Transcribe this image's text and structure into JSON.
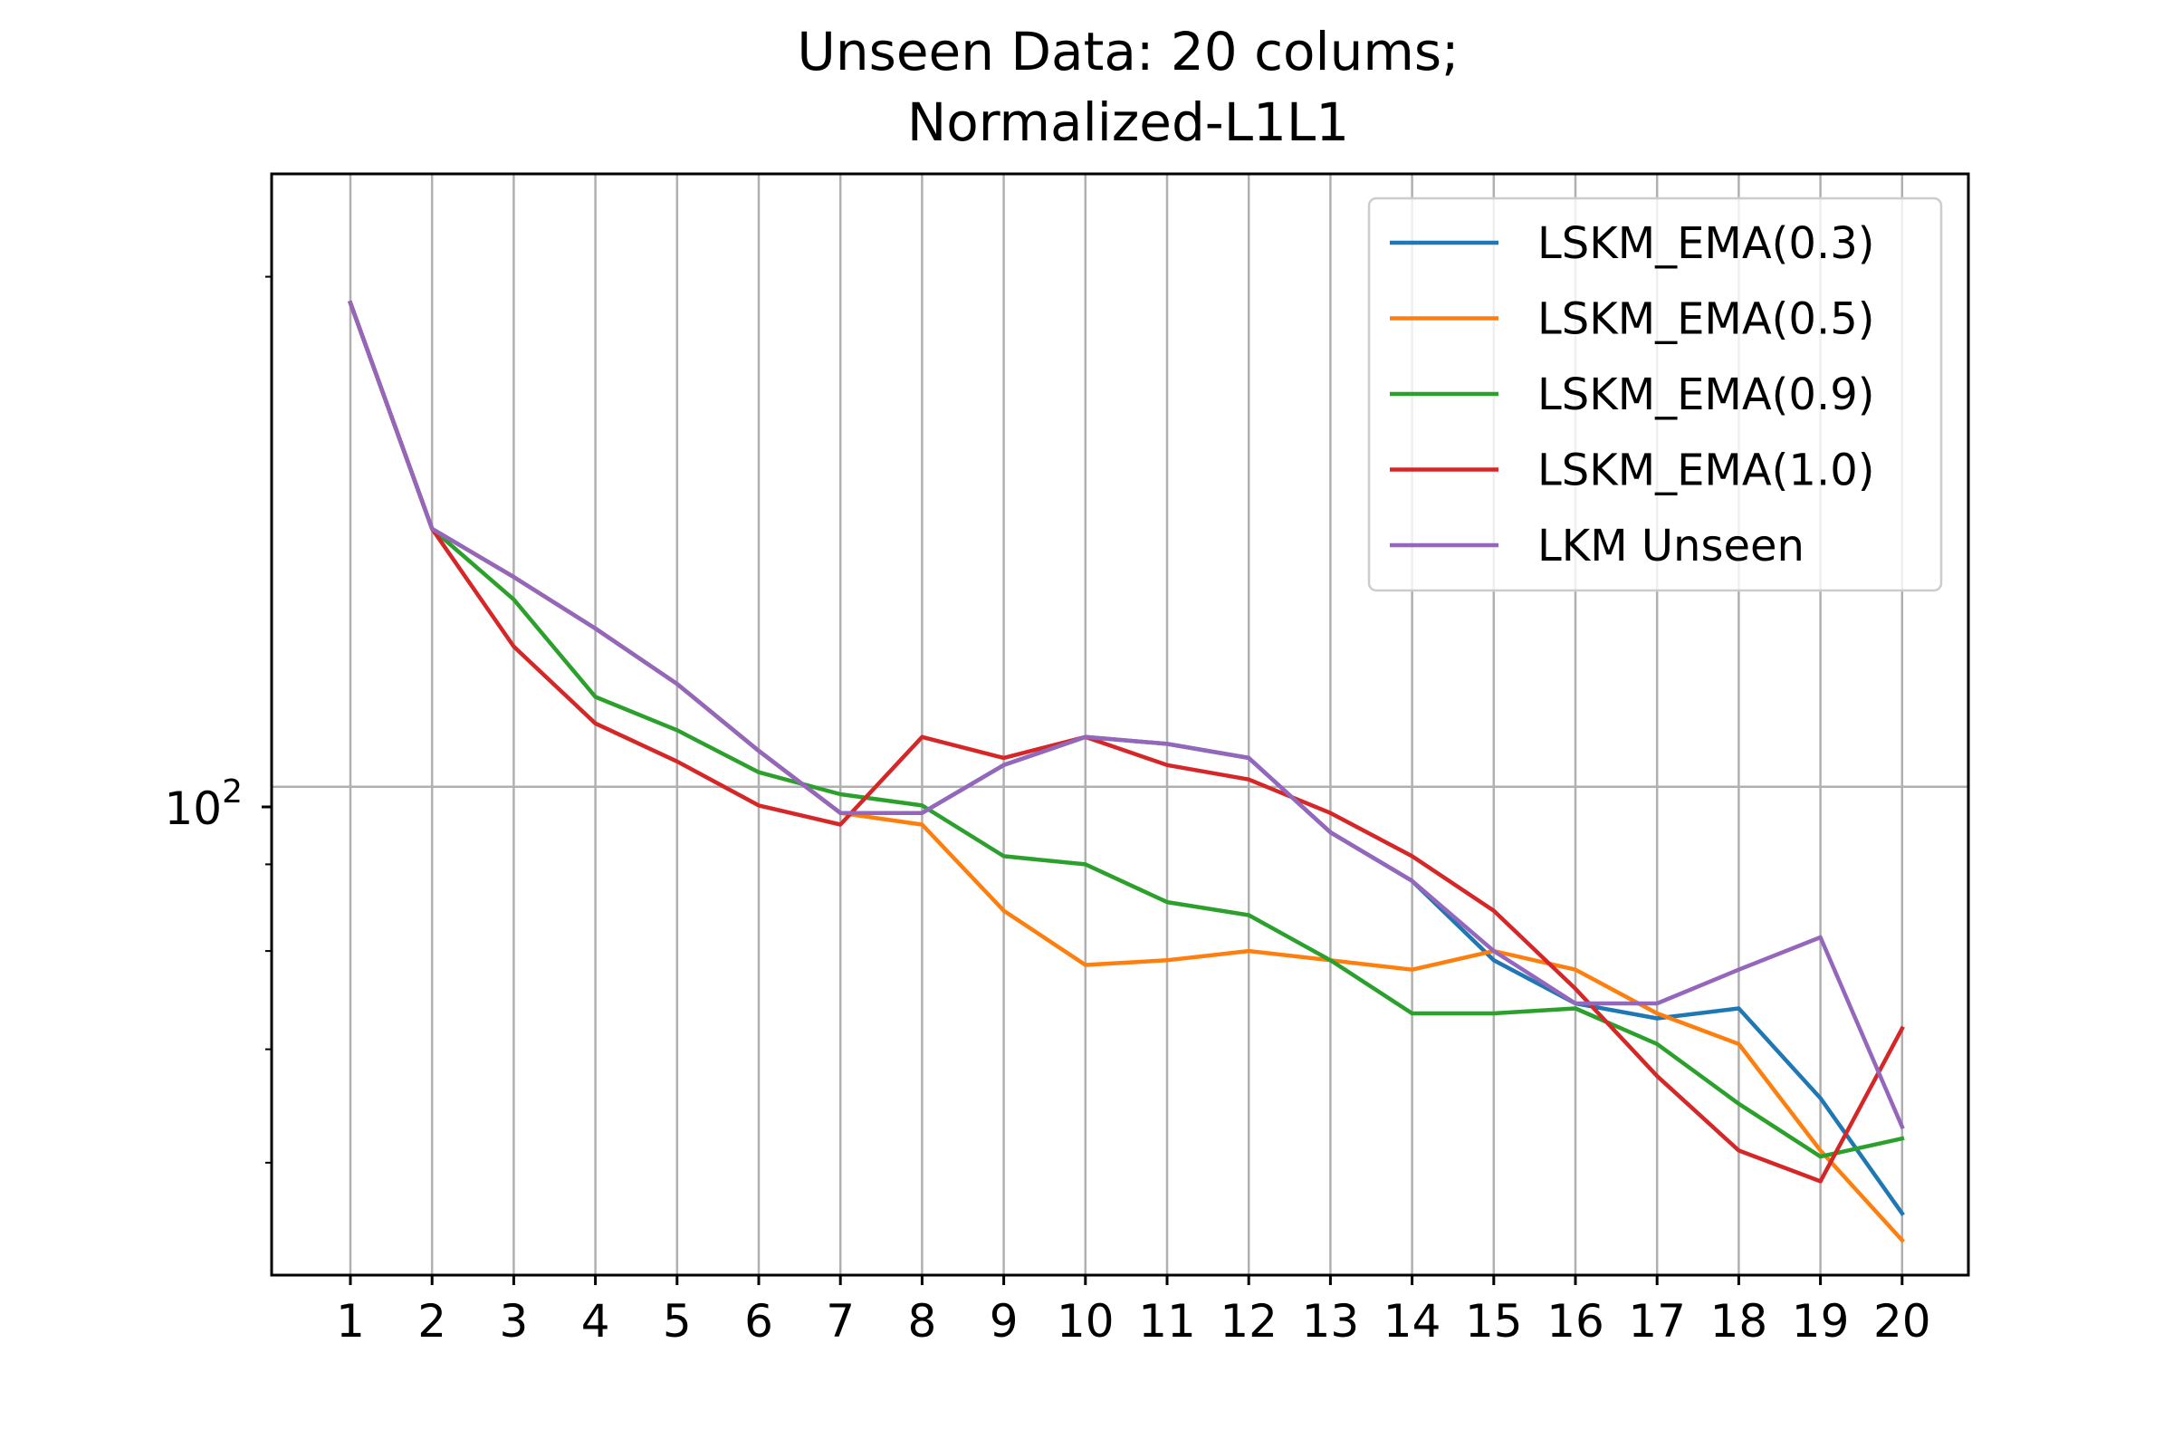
{
  "chart_data": {
    "type": "line",
    "title": "Unseen Data: 20 colums;",
    "subtitle": "Normalized-L1L1",
    "xlabel": "",
    "ylabel": "",
    "x": [
      1,
      2,
      3,
      4,
      5,
      6,
      7,
      8,
      9,
      10,
      11,
      12,
      13,
      14,
      15,
      16,
      17,
      18,
      19,
      20
    ],
    "y_scale": "log",
    "y_tick_label": "10",
    "y_tick_exponent": "2",
    "ylim": [
      51.5,
      230
    ],
    "grid": true,
    "legend_position": "upper right",
    "series": [
      {
        "name": "LSKM_EMA(0.3)",
        "color": "#1f77b4",
        "values": [
          193,
          142,
          133,
          124,
          115,
          105,
          96.5,
          96.5,
          103,
          107,
          106,
          104,
          94,
          88,
          79,
          74.5,
          73,
          74,
          65.5,
          56
        ]
      },
      {
        "name": "LSKM_EMA(0.5)",
        "color": "#ff7f0e",
        "values": [
          193,
          142,
          133,
          124,
          115,
          105,
          96.5,
          95,
          84.5,
          78.5,
          79,
          80,
          79,
          78,
          80,
          78,
          73.5,
          70.5,
          61,
          54
        ]
      },
      {
        "name": "LSKM_EMA(0.9)",
        "color": "#2ca02c",
        "values": [
          193,
          142,
          129,
          113,
          108,
          102,
          99,
          97.5,
          91,
          90,
          85.5,
          84,
          79,
          73.5,
          73.5,
          74,
          70.5,
          65,
          60.5,
          62
        ]
      },
      {
        "name": "LSKM_EMA(1.0)",
        "color": "#d62728",
        "values": [
          193,
          142,
          121,
          109,
          103.5,
          97.5,
          95,
          107,
          104,
          107,
          103,
          101,
          96.5,
          91,
          84.5,
          76,
          67.5,
          61,
          58.5,
          72
        ]
      },
      {
        "name": "LKM Unseen",
        "color": "#9467bd",
        "values": [
          193,
          142,
          133,
          124,
          115,
          105,
          96.5,
          96.5,
          103,
          107,
          106,
          104,
          94,
          88,
          80,
          74.5,
          74.5,
          78,
          81.5,
          63
        ]
      }
    ]
  }
}
